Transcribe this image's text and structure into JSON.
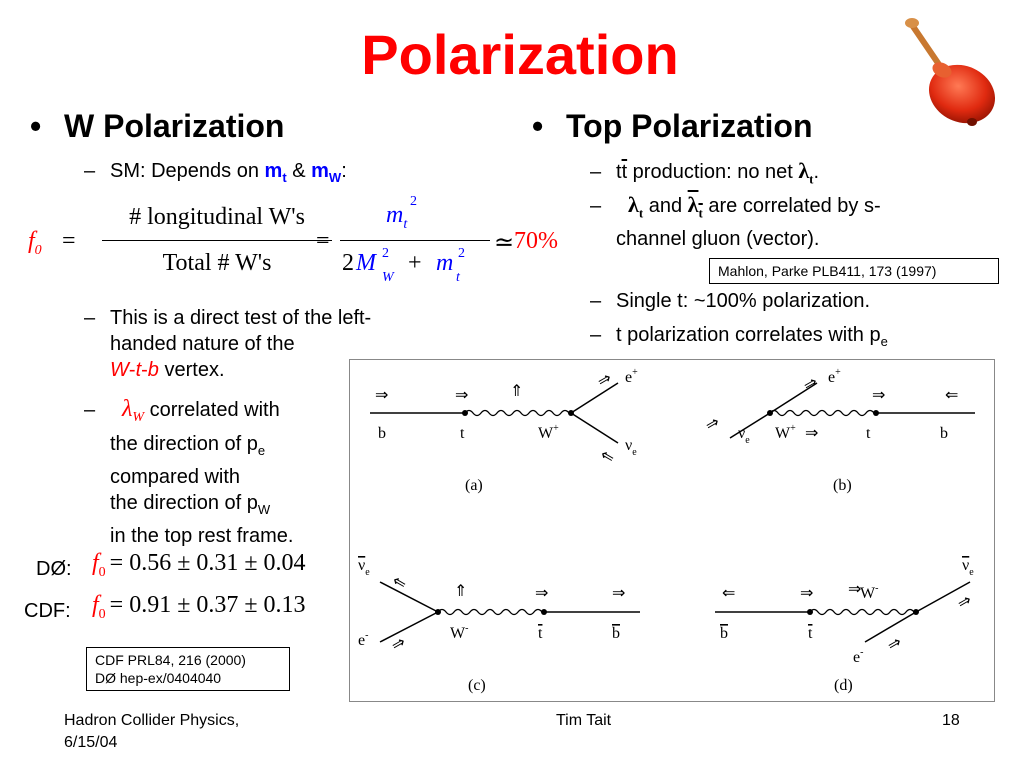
{
  "slide": {
    "title": "Polarization",
    "left": {
      "heading": "W Polarization",
      "sm_prefix": "SM: Depends on ",
      "sm_mt": "m",
      "sm_mt_sub": "t",
      "sm_amp": " & ",
      "sm_mw": "m",
      "sm_mw_sub": "W",
      "sm_colon": ":",
      "eq_f0": "f",
      "eq_f0_sub": "0",
      "eq_equals": "=",
      "eq_num": "# longitudinal W's",
      "eq_den": "Total # W's",
      "eq_equals2": "=",
      "eq_mt": "m",
      "eq_mt_sub": "t",
      "eq_mt_sup": "2",
      "eq_two": "2",
      "eq_M": "M",
      "eq_M_sub": "W",
      "eq_M_sup": "2",
      "eq_plus": "+",
      "eq_m2": "m",
      "eq_m2_sub": "t",
      "eq_m2_sup": "2",
      "eq_approx": "≃",
      "eq_pct": "70%",
      "direct_l1": "This is a direct test of the left-",
      "direct_l2": "handed nature of the",
      "vertex_w": "W",
      "vertex_dash1": "-",
      "vertex_t": "t",
      "vertex_dash2": "-",
      "vertex_b": "b",
      "vertex_rest": " vertex.",
      "lambda": "λ",
      "lambda_sub": "W",
      "corr_l1": " correlated with",
      "corr_l2": "the direction of p",
      "corr_l2_sub": "e",
      "corr_l3": "compared with",
      "corr_l4": "the direction of p",
      "corr_l4_sub": "W",
      "corr_l5": "in the top rest frame.",
      "d0_label": "DØ:",
      "d0_f": "f",
      "d0_sub": "0",
      "d0_expr": "= 0.56 ± 0.31 ± 0.04",
      "cdf_label": "CDF:",
      "cdf_f": "f",
      "cdf_sub": "0",
      "cdf_expr": "= 0.91 ± 0.37 ± 0.13",
      "refs_l1": "CDF PRL84, 216 (2000)",
      "refs_l2": "DØ hep-ex/0404040"
    },
    "right": {
      "heading": "Top Polarization",
      "l1_a": "t",
      "l1_b": "t",
      "l1_c": " production: no net ",
      "l1_lambda": "λ",
      "l1_sub": "t",
      "l1_dot": ".",
      "l2_lambda": "λ",
      "l2_sub": "t",
      "l2_and": " and ",
      "l2_lambda2": "λ",
      "l2_sub2": "t",
      "l2_rest": " are correlated by s-",
      "l2_cont": "channel gluon (vector).",
      "ref": "Mahlon, Parke PLB411, 173 (1997)",
      "single": "Single t: ~100% polarization.",
      "tpol": "t polarization correlates with p",
      "tpol_sub": "e"
    },
    "figure": {
      "a": {
        "b": "b",
        "t": "t",
        "W": "W",
        "Wsup": "+",
        "e": "e",
        "esup": "+",
        "nu": "ν",
        "nusub": "e",
        "cap": "(a)"
      },
      "b": {
        "b": "b",
        "t": "t",
        "W": "W",
        "Wsup": "+",
        "e": "e",
        "esup": "+",
        "nu": "ν",
        "nusub": "e",
        "cap": "(b)"
      },
      "c": {
        "b": "b",
        "t": "t",
        "W": "W",
        "Wsup": "-",
        "e": "e",
        "esup": "-",
        "nu": "ν",
        "nusub": "e",
        "cap": "(c)"
      },
      "d": {
        "b": "b",
        "t": "t",
        "W": "W",
        "Wsup": "-",
        "e": "e",
        "esup": "-",
        "nu": "ν",
        "nusub": "e",
        "cap": "(d)"
      }
    },
    "footer": {
      "left_l1": "Hadron Collider Physics,",
      "left_l2": "6/15/04",
      "center": "Tim Tait",
      "page": "18"
    },
    "colors": {
      "title": "#ff0000",
      "accent_blue": "#0000ff",
      "top_red": "#cc2200"
    },
    "icons": {
      "spinning_top": "spinning-top-icon"
    }
  }
}
